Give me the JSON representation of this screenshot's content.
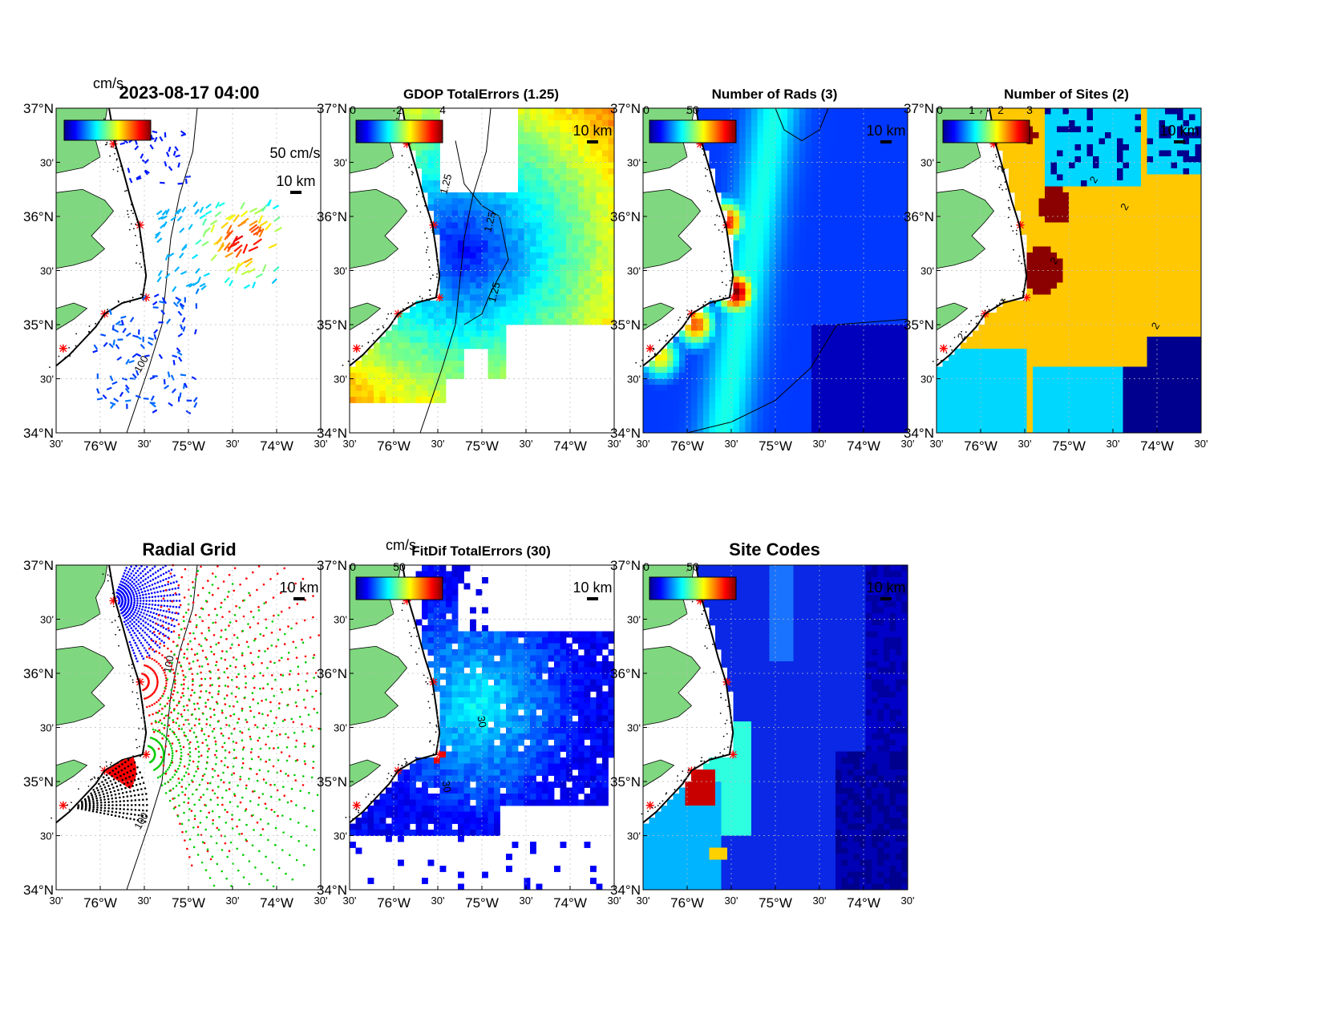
{
  "figure": {
    "timestamp_title": "2023-08-17 04:00",
    "colorbar_unit": "cm/s"
  },
  "axes_labels": {
    "lat": [
      "37°N",
      "30'",
      "36°N",
      "30'",
      "35°N",
      "30'",
      "34°N"
    ],
    "lon": [
      "30'",
      "76°W",
      "30'",
      "75°W",
      "30'",
      "74°W",
      "30'"
    ]
  },
  "chart_data": [
    {
      "id": "currents",
      "type": "scatter",
      "title": "2023-08-17 04:00",
      "colorbar_label": "cm/s",
      "vector_scale_label": "50 cm/s",
      "distance_scale_label": "10 km",
      "contour_label": "100",
      "xlim": [
        -76.5,
        -73.5
      ],
      "ylim": [
        34.0,
        37.0
      ],
      "sites": [
        [
          -75.85,
          36.67
        ],
        [
          -75.55,
          35.92
        ],
        [
          -75.48,
          35.25
        ],
        [
          -75.95,
          35.1
        ],
        [
          -76.42,
          34.78
        ]
      ]
    },
    {
      "id": "gdop",
      "type": "heatmap",
      "title": "GDOP TotalErrors (1.25)",
      "colorbar_ticks": [
        "0",
        "2",
        "4"
      ],
      "colorbar_range": [
        0,
        4
      ],
      "distance_scale_label": "10 km",
      "contour_level": 1.25,
      "contour_labels": [
        "1.25",
        "1.25",
        "1.25"
      ],
      "xlim": [
        -76.5,
        -73.5
      ],
      "ylim": [
        34.0,
        37.0
      ]
    },
    {
      "id": "nrads",
      "type": "heatmap",
      "title": "Number of Rads (3)",
      "colorbar_ticks": [
        "0",
        "50"
      ],
      "colorbar_range": [
        0,
        100
      ],
      "distance_scale_label": "10 km",
      "contour_level": 3,
      "xlim": [
        -76.5,
        -73.5
      ],
      "ylim": [
        34.0,
        37.0
      ]
    },
    {
      "id": "nsites",
      "type": "heatmap",
      "title": "Number of Sites (2)",
      "colorbar_ticks": [
        "0",
        "1",
        "2",
        "3"
      ],
      "colorbar_range": [
        0,
        3
      ],
      "distance_scale_label": "10 km",
      "contour_level": 2,
      "contour_labels": [
        "2",
        "2",
        "2",
        "2",
        "2",
        "2"
      ],
      "xlim": [
        -76.5,
        -73.5
      ],
      "ylim": [
        34.0,
        37.0
      ]
    },
    {
      "id": "radgrid",
      "type": "scatter",
      "title": "Radial Grid",
      "distance_scale_label": "10 km",
      "contour_labels": [
        "100",
        "100"
      ],
      "series_colors": [
        "#0000ff",
        "#ff0000",
        "#00cc00",
        "#ff0000",
        "#000000"
      ],
      "xlim": [
        -76.5,
        -73.5
      ],
      "ylim": [
        34.0,
        37.0
      ]
    },
    {
      "id": "fitdif",
      "type": "heatmap",
      "title": "FitDif TotalErrors (30)",
      "colorbar_label": "cm/s",
      "colorbar_ticks": [
        "0",
        "50"
      ],
      "colorbar_range": [
        0,
        100
      ],
      "distance_scale_label": "10 km",
      "contour_level": 30,
      "contour_labels": [
        "30",
        "30"
      ],
      "xlim": [
        -76.5,
        -73.5
      ],
      "ylim": [
        34.0,
        37.0
      ]
    },
    {
      "id": "sitecodes",
      "type": "heatmap",
      "title": "Site Codes",
      "colorbar_ticks": [
        "0",
        "50"
      ],
      "colorbar_range": [
        0,
        100
      ],
      "distance_scale_label": "10 km",
      "xlim": [
        -76.5,
        -73.5
      ],
      "ylim": [
        34.0,
        37.0
      ]
    }
  ],
  "colors": {
    "land": "#7fd87f",
    "site_marker": "#ff0000",
    "axes": "#000000"
  }
}
